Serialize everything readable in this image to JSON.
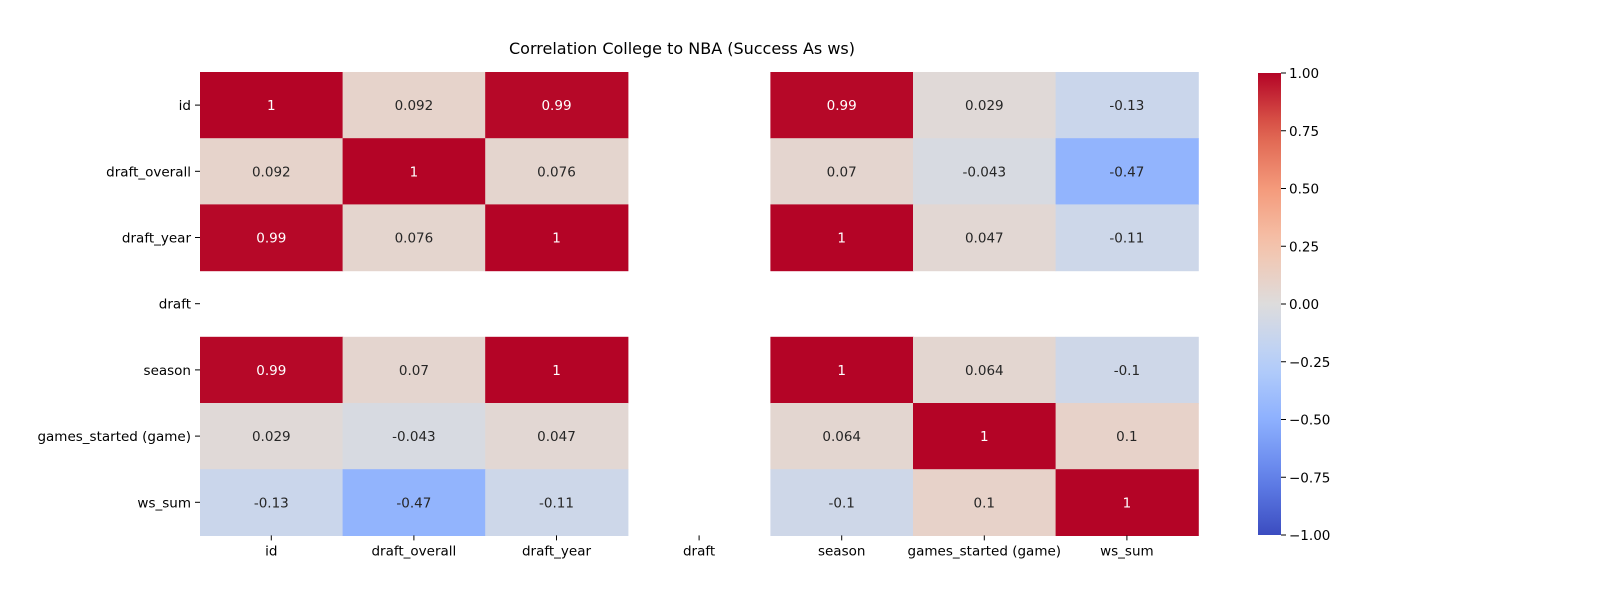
{
  "chart_data": {
    "type": "heatmap",
    "title": "Correlation College to NBA (Success As ws)",
    "xlabel": "",
    "ylabel": "",
    "labels": [
      "id",
      "draft_overall",
      "draft_year",
      "draft",
      "season",
      "games_started (game)",
      "ws_sum"
    ],
    "matrix": [
      [
        1,
        0.092,
        0.99,
        null,
        0.99,
        0.029,
        -0.13
      ],
      [
        0.092,
        1,
        0.076,
        null,
        0.07,
        -0.043,
        -0.47
      ],
      [
        0.99,
        0.076,
        1,
        null,
        1,
        0.047,
        -0.11
      ],
      [
        null,
        null,
        null,
        null,
        null,
        null,
        null
      ],
      [
        0.99,
        0.07,
        1,
        null,
        1,
        0.064,
        -0.1
      ],
      [
        0.029,
        -0.043,
        0.047,
        null,
        0.064,
        1,
        0.1
      ],
      [
        -0.13,
        -0.47,
        -0.11,
        null,
        -0.1,
        0.1,
        1
      ]
    ],
    "annotations": [
      [
        "1",
        "0.092",
        "0.99",
        "",
        "0.99",
        "0.029",
        "-0.13"
      ],
      [
        "0.092",
        "1",
        "0.076",
        "",
        "0.07",
        "-0.043",
        "-0.47"
      ],
      [
        "0.99",
        "0.076",
        "1",
        "",
        "1",
        "0.047",
        "-0.11"
      ],
      [
        "",
        "",
        "",
        "",
        "",
        "",
        ""
      ],
      [
        "0.99",
        "0.07",
        "1",
        "",
        "1",
        "0.064",
        "-0.1"
      ],
      [
        "0.029",
        "-0.043",
        "0.047",
        "",
        "0.064",
        "1",
        "0.1"
      ],
      [
        "-0.13",
        "-0.47",
        "-0.11",
        "",
        "-0.1",
        "0.1",
        "1"
      ]
    ],
    "colormap": "coolwarm",
    "vmin": -1,
    "vmax": 1,
    "colorbar_ticks": [
      "1.00",
      "0.75",
      "0.50",
      "0.25",
      "0.00",
      "−0.25",
      "−0.50",
      "−0.75",
      "−1.00"
    ],
    "colorbar_tick_values": [
      1,
      0.75,
      0.5,
      0.25,
      0,
      -0.25,
      -0.5,
      -0.75,
      -1
    ],
    "grid": false,
    "legend": "colorbar-right"
  }
}
